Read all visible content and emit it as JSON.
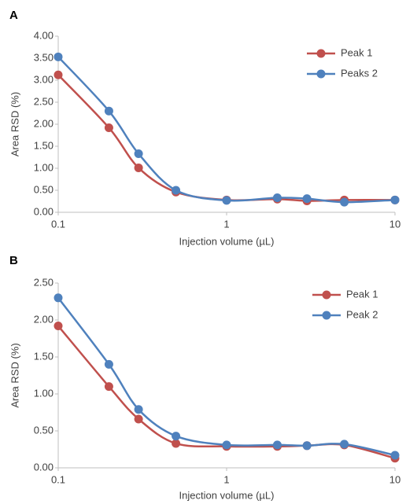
{
  "chart_data": [
    {
      "type": "line",
      "title": "A",
      "xlabel": "Injection volume (µL)",
      "ylabel": "Area RSD (%)",
      "xscale": "log",
      "xlim": [
        0.1,
        10
      ],
      "xticks": [
        0.1,
        1,
        10
      ],
      "ylim": [
        0,
        4
      ],
      "yticks": [
        {
          "value": 0,
          "label": "0.00"
        },
        {
          "value": 0.5,
          "label": "0.50"
        },
        {
          "value": 1,
          "label": "1.00"
        },
        {
          "value": 1.5,
          "label": "1.50"
        },
        {
          "value": 2,
          "label": "2.00"
        },
        {
          "value": 2.5,
          "label": "2.50"
        },
        {
          "value": 3,
          "label": "3.00"
        },
        {
          "value": 3.5,
          "label": "3.50"
        },
        {
          "value": 4,
          "label": "4.00"
        }
      ],
      "legend": "upper right",
      "x": [
        0.1,
        0.2,
        0.3,
        0.5,
        1,
        2,
        3,
        5,
        10
      ],
      "series": [
        {
          "name": "Peak 1",
          "color": "#c0504d",
          "values": [
            3.12,
            1.92,
            1.01,
            0.46,
            0.28,
            0.3,
            0.26,
            0.28,
            0.28
          ]
        },
        {
          "name": "Peaks 2",
          "color": "#4f81bd",
          "values": [
            3.53,
            2.3,
            1.33,
            0.5,
            0.27,
            0.33,
            0.31,
            0.23,
            0.28
          ]
        }
      ]
    },
    {
      "type": "line",
      "title": "B",
      "xlabel": "Injection volume (µL)",
      "ylabel": "Area RSD (%)",
      "xscale": "log",
      "xlim": [
        0.1,
        10
      ],
      "xticks": [
        0.1,
        1,
        10
      ],
      "ylim": [
        0,
        2.5
      ],
      "yticks": [
        {
          "value": 0,
          "label": "0.00"
        },
        {
          "value": 0.5,
          "label": "0.50"
        },
        {
          "value": 1,
          "label": "1.00"
        },
        {
          "value": 1.5,
          "label": "1.50"
        },
        {
          "value": 2,
          "label": "2.00"
        },
        {
          "value": 2.5,
          "label": "2.50"
        }
      ],
      "legend": "upper right",
      "x": [
        0.1,
        0.2,
        0.3,
        0.5,
        1,
        2,
        3,
        5,
        10
      ],
      "series": [
        {
          "name": "Peak 1",
          "color": "#c0504d",
          "values": [
            1.92,
            1.1,
            0.66,
            0.33,
            0.29,
            0.29,
            0.3,
            0.31,
            0.13
          ]
        },
        {
          "name": "Peak 2",
          "color": "#4f81bd",
          "values": [
            2.3,
            1.4,
            0.79,
            0.43,
            0.31,
            0.31,
            0.3,
            0.32,
            0.17
          ]
        }
      ]
    }
  ]
}
